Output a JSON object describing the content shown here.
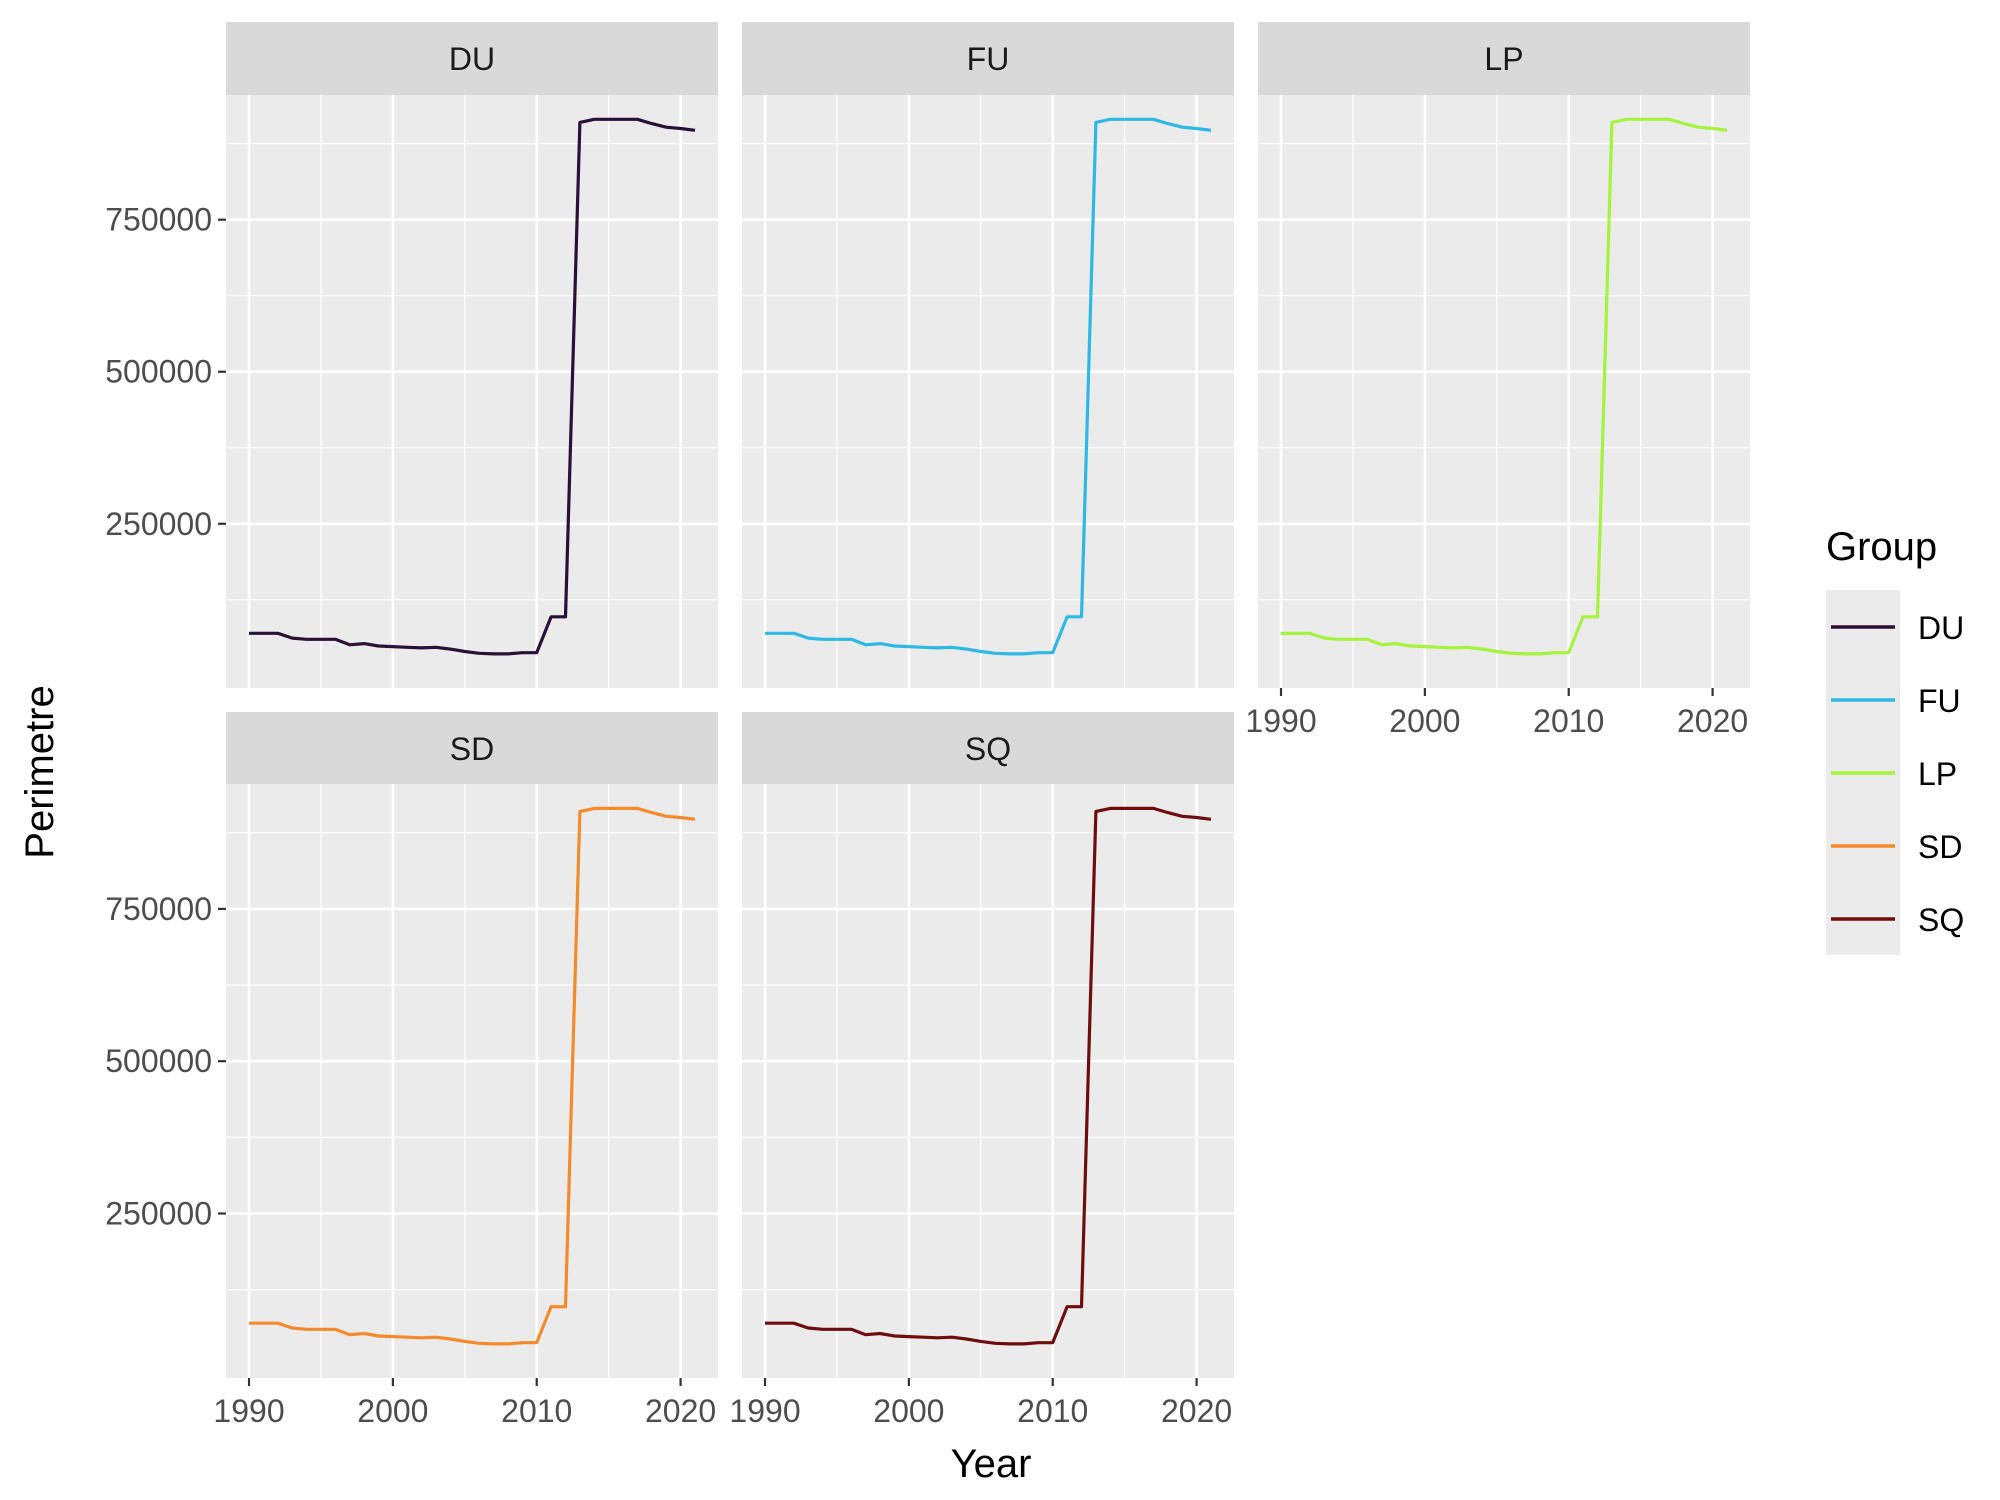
{
  "chart_data": {
    "type": "line",
    "facet_by": "Group",
    "xlabel": "Year",
    "ylabel": "Perimetre",
    "x_ticks": [
      1990,
      2000,
      2010,
      2020
    ],
    "y_ticks": [
      250000,
      500000,
      750000
    ],
    "y_tick_labels": [
      "250000",
      "500000",
      "750000"
    ],
    "x_tick_labels": [
      "1990",
      "2000",
      "2010",
      "2020"
    ],
    "xlim": [
      1988.4,
      2022.6
    ],
    "ylim": [
      -20000,
      955000
    ],
    "x": [
      1990,
      1991,
      1992,
      1993,
      1994,
      1995,
      1996,
      1997,
      1998,
      1999,
      2000,
      2001,
      2002,
      2003,
      2004,
      2005,
      2006,
      2007,
      2008,
      2009,
      2010,
      2011,
      2012,
      2013,
      2014,
      2015,
      2016,
      2017,
      2018,
      2019,
      2020,
      2021
    ],
    "grid": true,
    "legend": {
      "title": "Group",
      "position": "right",
      "entries": [
        "DU",
        "FU",
        "LP",
        "SD",
        "SQ"
      ]
    },
    "series": [
      {
        "name": "DU",
        "color": "#2a0f36",
        "values": [
          70000,
          70000,
          70000,
          62000,
          60000,
          60000,
          60000,
          51000,
          53000,
          49000,
          48000,
          47000,
          46000,
          47000,
          44000,
          40000,
          37000,
          36000,
          36000,
          38000,
          38000,
          97000,
          97000,
          910000,
          915000,
          915000,
          915000,
          915000,
          908000,
          902000,
          900000,
          897000
        ]
      },
      {
        "name": "FU",
        "color": "#2eb8e6",
        "values": [
          70000,
          70000,
          70000,
          62000,
          60000,
          60000,
          60000,
          51000,
          53000,
          49000,
          48000,
          47000,
          46000,
          47000,
          44000,
          40000,
          37000,
          36000,
          36000,
          38000,
          38000,
          97000,
          97000,
          910000,
          915000,
          915000,
          915000,
          915000,
          908000,
          902000,
          900000,
          897000
        ]
      },
      {
        "name": "LP",
        "color": "#a6f33d",
        "values": [
          70000,
          70000,
          70000,
          62000,
          60000,
          60000,
          60000,
          51000,
          53000,
          49000,
          48000,
          47000,
          46000,
          47000,
          44000,
          40000,
          37000,
          36000,
          36000,
          38000,
          38000,
          97000,
          97000,
          910000,
          915000,
          915000,
          915000,
          915000,
          908000,
          902000,
          900000,
          897000
        ]
      },
      {
        "name": "SD",
        "color": "#f58a2c",
        "values": [
          70000,
          70000,
          70000,
          62000,
          60000,
          60000,
          60000,
          51000,
          53000,
          49000,
          48000,
          47000,
          46000,
          47000,
          44000,
          40000,
          37000,
          36000,
          36000,
          38000,
          38000,
          97000,
          97000,
          910000,
          915000,
          915000,
          915000,
          915000,
          908000,
          902000,
          900000,
          897000
        ]
      },
      {
        "name": "SQ",
        "color": "#6e0d0d",
        "values": [
          70000,
          70000,
          70000,
          62000,
          60000,
          60000,
          60000,
          51000,
          53000,
          49000,
          48000,
          47000,
          46000,
          47000,
          44000,
          40000,
          37000,
          36000,
          36000,
          38000,
          38000,
          97000,
          97000,
          910000,
          915000,
          915000,
          915000,
          915000,
          908000,
          902000,
          900000,
          897000
        ]
      }
    ]
  }
}
